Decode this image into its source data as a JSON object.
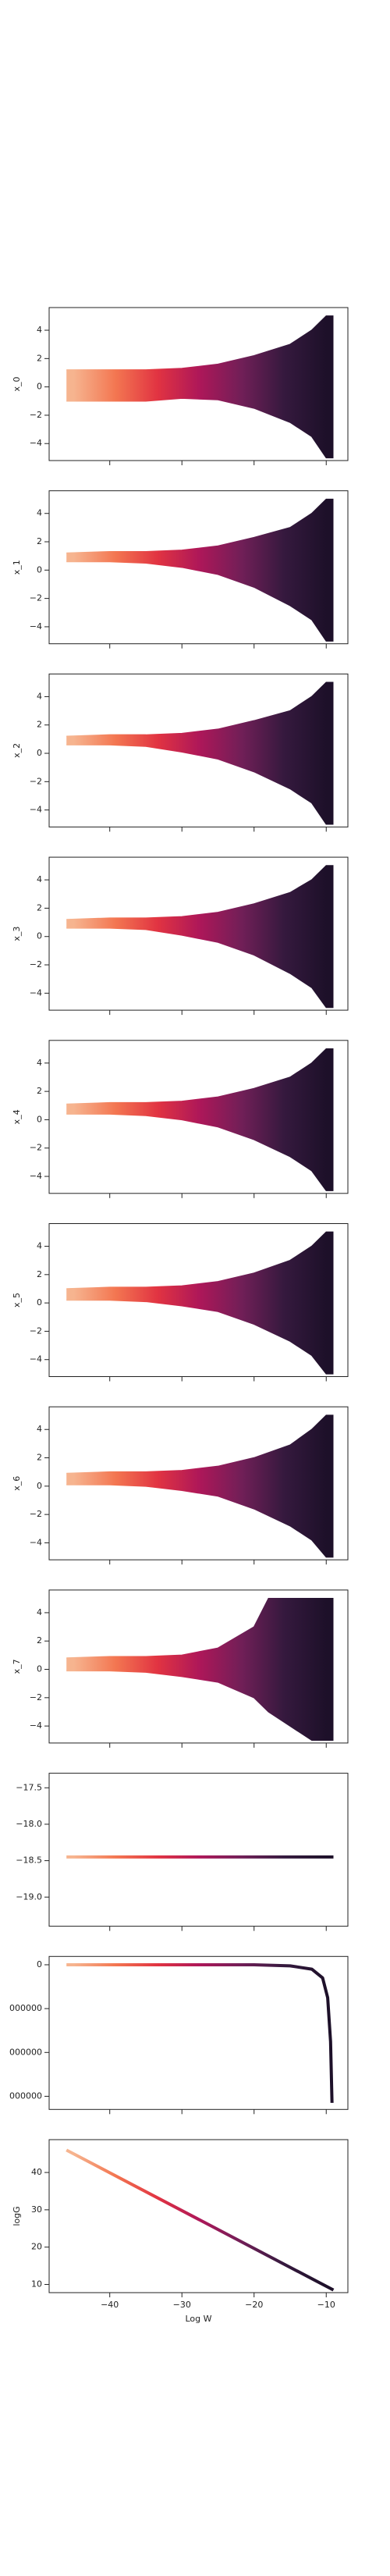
{
  "chart_data": [
    {
      "type": "area",
      "ylabel": "x_0",
      "xlim": [
        -48.4,
        -7.0
      ],
      "ylim": [
        -5.2,
        5.6
      ],
      "xticks": [
        -40,
        -30,
        -20,
        -10
      ],
      "yticks": [
        {
          "value": -4,
          "label": "−4"
        },
        {
          "value": -2,
          "label": "−2"
        },
        0,
        2,
        4
      ],
      "x": [
        -46,
        -40,
        -35,
        -30,
        -25,
        -20,
        -15,
        -12,
        -10,
        -9
      ],
      "upper": [
        1.2,
        1.2,
        1.2,
        1.3,
        1.6,
        2.2,
        3,
        4,
        5,
        5
      ],
      "lower": [
        -1,
        -1,
        -1,
        -0.8,
        -0.9,
        -1.5,
        -2.5,
        -3.5,
        -5,
        -5
      ]
    },
    {
      "type": "area",
      "ylabel": "x_1",
      "xlim": [
        -48.4,
        -7.0
      ],
      "ylim": [
        -5.2,
        5.6
      ],
      "xticks": [
        -40,
        -30,
        -20,
        -10
      ],
      "yticks": [
        {
          "value": -4,
          "label": "−4"
        },
        {
          "value": -2,
          "label": "−2"
        },
        0,
        2,
        4
      ],
      "x": [
        -46,
        -40,
        -35,
        -30,
        -25,
        -20,
        -15,
        -12,
        -10,
        -9
      ],
      "upper": [
        1.2,
        1.3,
        1.3,
        1.4,
        1.7,
        2.3,
        3,
        4,
        5,
        5
      ],
      "lower": [
        0.6,
        0.6,
        0.5,
        0.2,
        -0.3,
        -1.2,
        -2.5,
        -3.5,
        -5,
        -5
      ]
    },
    {
      "type": "area",
      "ylabel": "x_2",
      "xlim": [
        -48.4,
        -7.0
      ],
      "ylim": [
        -5.2,
        5.6
      ],
      "xticks": [
        -40,
        -30,
        -20,
        -10
      ],
      "yticks": [
        {
          "value": -4,
          "label": "−4"
        },
        {
          "value": -2,
          "label": "−2"
        },
        0,
        2,
        4
      ],
      "x": [
        -46,
        -40,
        -35,
        -30,
        -25,
        -20,
        -15,
        -12,
        -10,
        -9
      ],
      "upper": [
        1.2,
        1.3,
        1.3,
        1.4,
        1.7,
        2.3,
        3,
        4,
        5,
        5
      ],
      "lower": [
        0.6,
        0.6,
        0.5,
        0.1,
        -0.4,
        -1.3,
        -2.5,
        -3.5,
        -5,
        -5
      ]
    },
    {
      "type": "area",
      "ylabel": "x_3",
      "xlim": [
        -48.4,
        -7.0
      ],
      "ylim": [
        -5.2,
        5.6
      ],
      "xticks": [
        -40,
        -30,
        -20,
        -10
      ],
      "yticks": [
        {
          "value": -4,
          "label": "−4"
        },
        {
          "value": -2,
          "label": "−2"
        },
        0,
        2,
        4
      ],
      "x": [
        -46,
        -40,
        -35,
        -30,
        -25,
        -20,
        -15,
        -12,
        -10,
        -9
      ],
      "upper": [
        1.2,
        1.3,
        1.3,
        1.4,
        1.7,
        2.3,
        3.1,
        4,
        5,
        5
      ],
      "lower": [
        0.6,
        0.6,
        0.5,
        0.1,
        -0.4,
        -1.3,
        -2.6,
        -3.6,
        -5,
        -5
      ]
    },
    {
      "type": "area",
      "ylabel": "x_4",
      "xlim": [
        -48.4,
        -7.0
      ],
      "ylim": [
        -5.2,
        5.6
      ],
      "xticks": [
        -40,
        -30,
        -20,
        -10
      ],
      "yticks": [
        {
          "value": -4,
          "label": "−4"
        },
        {
          "value": -2,
          "label": "−2"
        },
        0,
        2,
        4
      ],
      "x": [
        -46,
        -40,
        -35,
        -30,
        -25,
        -20,
        -15,
        -12,
        -10,
        -9
      ],
      "upper": [
        1.1,
        1.2,
        1.2,
        1.3,
        1.6,
        2.2,
        3,
        4,
        5,
        5
      ],
      "lower": [
        0.4,
        0.4,
        0.3,
        0,
        -0.5,
        -1.4,
        -2.6,
        -3.6,
        -5,
        -5
      ]
    },
    {
      "type": "area",
      "ylabel": "x_5",
      "xlim": [
        -48.4,
        -7.0
      ],
      "ylim": [
        -5.2,
        5.6
      ],
      "xticks": [
        -40,
        -30,
        -20,
        -10
      ],
      "yticks": [
        {
          "value": -4,
          "label": "−4"
        },
        {
          "value": -2,
          "label": "−2"
        },
        0,
        2,
        4
      ],
      "x": [
        -46,
        -40,
        -35,
        -30,
        -25,
        -20,
        -15,
        -12,
        -10,
        -9
      ],
      "upper": [
        1,
        1.1,
        1.1,
        1.2,
        1.5,
        2.1,
        3,
        4,
        5,
        5
      ],
      "lower": [
        0.2,
        0.2,
        0.1,
        -0.2,
        -0.6,
        -1.5,
        -2.7,
        -3.7,
        -5,
        -5
      ]
    },
    {
      "type": "area",
      "ylabel": "x_6",
      "xlim": [
        -48.4,
        -7.0
      ],
      "ylim": [
        -5.2,
        5.6
      ],
      "xticks": [
        -40,
        -30,
        -20,
        -10
      ],
      "yticks": [
        {
          "value": -4,
          "label": "−4"
        },
        {
          "value": -2,
          "label": "−2"
        },
        0,
        2,
        4
      ],
      "x": [
        -46,
        -40,
        -35,
        -30,
        -25,
        -20,
        -15,
        -12,
        -10,
        -9
      ],
      "upper": [
        0.9,
        1,
        1,
        1.1,
        1.4,
        2,
        2.9,
        4,
        5,
        5
      ],
      "lower": [
        0.1,
        0.1,
        0,
        -0.3,
        -0.7,
        -1.6,
        -2.8,
        -3.8,
        -5,
        -5
      ]
    },
    {
      "type": "area",
      "ylabel": "x_7",
      "xlim": [
        -48.4,
        -7.0
      ],
      "ylim": [
        -5.2,
        5.6
      ],
      "xticks": [
        -40,
        -30,
        -20,
        -10
      ],
      "yticks": [
        {
          "value": -4,
          "label": "−4"
        },
        {
          "value": -2,
          "label": "−2"
        },
        0,
        2,
        4
      ],
      "x": [
        -46,
        -40,
        -35,
        -30,
        -25,
        -20,
        -18,
        -15,
        -12,
        -10,
        -9
      ],
      "upper": [
        0.8,
        0.9,
        0.9,
        1,
        1.5,
        3,
        5,
        5,
        5,
        5,
        5
      ],
      "lower": [
        -0.1,
        -0.1,
        -0.2,
        -0.5,
        -0.9,
        -2,
        -3,
        -4,
        -5,
        -5,
        -5
      ]
    },
    {
      "type": "line",
      "xlim": [
        -48.4,
        -7.0
      ],
      "ylim": [
        -19.4,
        -17.3
      ],
      "xticks": [
        -40,
        -30,
        -20,
        -10
      ],
      "yticks": [
        {
          "value": -19.0,
          "label": "−19.0"
        },
        {
          "value": -18.5,
          "label": "−18.5"
        },
        {
          "value": -18.0,
          "label": "−18.0"
        },
        {
          "value": -17.5,
          "label": "−17.5"
        }
      ],
      "x": [
        -46,
        -9
      ],
      "y": [
        -18.45,
        -18.45
      ]
    },
    {
      "type": "line",
      "xlim": [
        -48.4,
        -7.0
      ],
      "ylim": [
        -6600000,
        380000
      ],
      "xticks": [
        -40,
        -30,
        -20,
        -10
      ],
      "yticks": [
        {
          "value": -6000000,
          "label": "000000"
        },
        {
          "value": -4000000,
          "label": "000000"
        },
        {
          "value": -2000000,
          "label": "000000"
        },
        0
      ],
      "x": [
        -46,
        -30,
        -20,
        -15,
        -12,
        -10.5,
        -9.8,
        -9.4,
        -9.2
      ],
      "y": [
        0,
        0,
        0,
        -50000,
        -200000,
        -600000,
        -1500000,
        -3500000,
        -6300000
      ]
    },
    {
      "type": "line",
      "ylabel": "logG",
      "xlabel": "Log W",
      "show_xticklabels": true,
      "xlim": [
        -48.4,
        -7.0
      ],
      "ylim": [
        7.8,
        48.8
      ],
      "xticks": [
        {
          "value": -40,
          "label": "−40"
        },
        {
          "value": -30,
          "label": "−30"
        },
        {
          "value": -20,
          "label": "−20"
        },
        {
          "value": -10,
          "label": "−10"
        }
      ],
      "yticks": [
        10,
        20,
        30,
        40
      ],
      "x": [
        -46,
        -9
      ],
      "y": [
        46,
        8.5
      ]
    }
  ],
  "colormap": [
    "#f6b48f",
    "#f37651",
    "#e13342",
    "#ad1759",
    "#701f57",
    "#35193e",
    "#1d1029"
  ],
  "color_range": [
    -45,
    -10
  ]
}
